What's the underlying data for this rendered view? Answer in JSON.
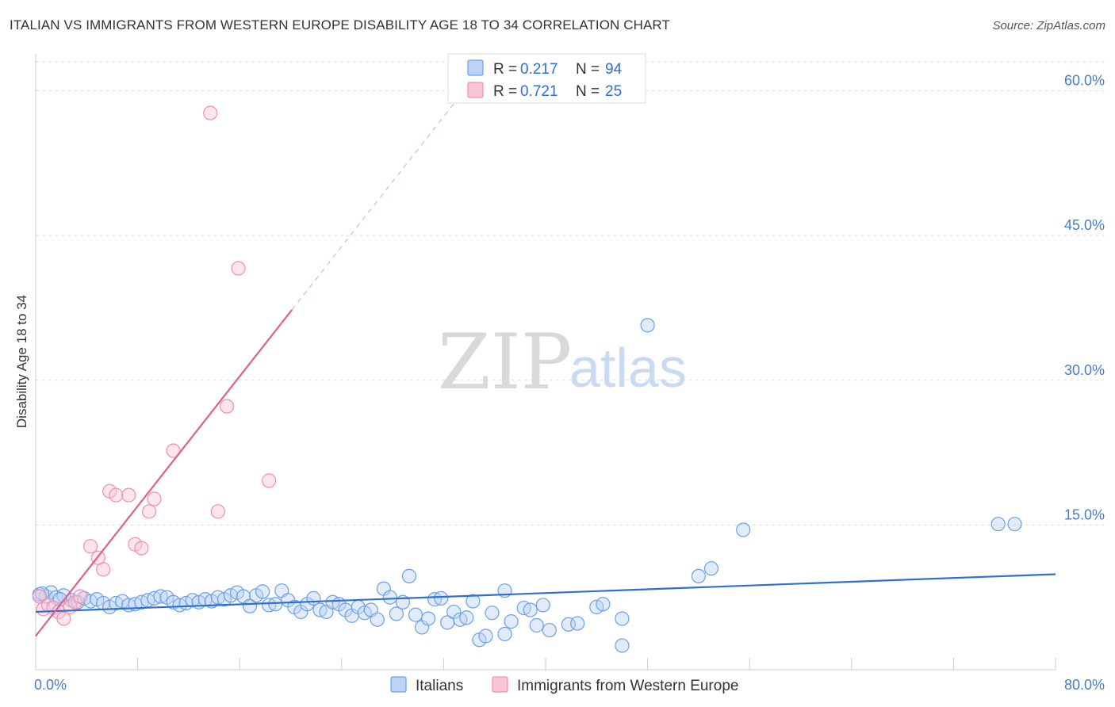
{
  "title": "ITALIAN VS IMMIGRANTS FROM WESTERN EUROPE DISABILITY AGE 18 TO 34 CORRELATION CHART",
  "source": "Source: ZipAtlas.com",
  "watermark": {
    "zip": "ZIP",
    "atlas": "atlas"
  },
  "chart_data": {
    "type": "scatter",
    "ylabel": "Disability Age 18 to 34",
    "xlim": [
      0,
      80
    ],
    "ylim": [
      0,
      63
    ],
    "x_tick_labels": [
      "0.0%",
      "80.0%"
    ],
    "y_ticks": [
      15,
      30,
      45,
      60
    ],
    "y_tick_labels": [
      "15.0%",
      "30.0%",
      "45.0%",
      "60.0%"
    ],
    "colors": {
      "italians": "#6ca0e8",
      "immigrants": "#f08fb0",
      "italians_line": "#2f6fd0",
      "immigrants_line": "#e0608a"
    },
    "legend": [
      {
        "name": "Italians",
        "r_label": "R =",
        "r": "0.217",
        "n_label": "N =",
        "n": "94"
      },
      {
        "name": "Immigrants from Western Europe",
        "r_label": "R =",
        "r": "0.721",
        "n_label": "N =",
        "n": "25"
      }
    ],
    "series": [
      {
        "name": "Italians",
        "trend": {
          "x0": 0,
          "y0": 6.0,
          "x1": 80,
          "y1": 9.9
        },
        "points": [
          [
            0.3,
            7.8
          ],
          [
            0.8,
            7.6
          ],
          [
            1.2,
            8.0
          ],
          [
            1.6,
            7.5
          ],
          [
            2.2,
            7.7
          ],
          [
            2.8,
            7.2
          ],
          [
            3.3,
            7.0
          ],
          [
            3.8,
            7.4
          ],
          [
            4.3,
            7.1
          ],
          [
            4.8,
            7.3
          ],
          [
            5.3,
            6.9
          ],
          [
            5.8,
            6.5
          ],
          [
            6.3,
            6.9
          ],
          [
            6.8,
            7.1
          ],
          [
            7.3,
            6.7
          ],
          [
            7.8,
            6.8
          ],
          [
            8.3,
            7.0
          ],
          [
            8.8,
            7.2
          ],
          [
            9.3,
            7.4
          ],
          [
            9.8,
            7.6
          ],
          [
            10.3,
            7.5
          ],
          [
            10.8,
            7.0
          ],
          [
            11.3,
            6.7
          ],
          [
            11.8,
            6.9
          ],
          [
            12.3,
            7.2
          ],
          [
            12.8,
            7.0
          ],
          [
            13.3,
            7.3
          ],
          [
            13.8,
            7.1
          ],
          [
            14.3,
            7.5
          ],
          [
            14.8,
            7.3
          ],
          [
            15.3,
            7.7
          ],
          [
            15.8,
            8.0
          ],
          [
            16.3,
            7.6
          ],
          [
            16.8,
            6.6
          ],
          [
            17.3,
            7.7
          ],
          [
            17.8,
            8.1
          ],
          [
            18.3,
            6.7
          ],
          [
            18.8,
            6.8
          ],
          [
            19.3,
            8.2
          ],
          [
            19.8,
            7.2
          ],
          [
            20.3,
            6.5
          ],
          [
            20.8,
            6.0
          ],
          [
            21.3,
            6.8
          ],
          [
            21.8,
            7.4
          ],
          [
            22.3,
            6.2
          ],
          [
            22.8,
            6.0
          ],
          [
            23.3,
            7.0
          ],
          [
            23.8,
            6.8
          ],
          [
            24.3,
            6.2
          ],
          [
            24.8,
            5.6
          ],
          [
            25.3,
            6.5
          ],
          [
            25.8,
            5.9
          ],
          [
            26.3,
            6.2
          ],
          [
            26.8,
            5.2
          ],
          [
            27.3,
            8.4
          ],
          [
            27.8,
            7.5
          ],
          [
            28.3,
            5.8
          ],
          [
            28.8,
            7.0
          ],
          [
            29.3,
            9.7
          ],
          [
            29.8,
            5.7
          ],
          [
            30.3,
            4.4
          ],
          [
            30.8,
            5.3
          ],
          [
            31.3,
            7.3
          ],
          [
            31.8,
            7.4
          ],
          [
            32.3,
            4.9
          ],
          [
            32.8,
            6.0
          ],
          [
            33.3,
            5.2
          ],
          [
            33.8,
            5.4
          ],
          [
            34.3,
            7.1
          ],
          [
            34.8,
            3.1
          ],
          [
            35.3,
            3.5
          ],
          [
            35.8,
            5.9
          ],
          [
            36.8,
            8.2
          ],
          [
            36.8,
            3.7
          ],
          [
            37.3,
            5.0
          ],
          [
            38.3,
            6.4
          ],
          [
            38.8,
            6.2
          ],
          [
            39.3,
            4.6
          ],
          [
            39.8,
            6.7
          ],
          [
            40.3,
            4.1
          ],
          [
            41.8,
            4.7
          ],
          [
            42.5,
            4.8
          ],
          [
            44.0,
            6.5
          ],
          [
            44.5,
            6.8
          ],
          [
            46.0,
            5.3
          ],
          [
            46.0,
            2.5
          ],
          [
            48.0,
            35.7
          ],
          [
            52.0,
            9.7
          ],
          [
            53.0,
            10.5
          ],
          [
            55.5,
            14.5
          ],
          [
            75.5,
            15.1
          ],
          [
            76.8,
            15.1
          ],
          [
            0.5,
            7.9
          ],
          [
            1.9,
            7.3
          ]
        ]
      },
      {
        "name": "Immigrants from Western Europe",
        "trend": {
          "x0": 0,
          "y0": 3.5,
          "x1": 20.1,
          "y1": 37.3,
          "dash_to_x": 33,
          "dash_to_y": 59.0
        },
        "points": [
          [
            0.3,
            7.6
          ],
          [
            0.6,
            6.3
          ],
          [
            1.0,
            6.7
          ],
          [
            1.4,
            6.4
          ],
          [
            1.8,
            6.0
          ],
          [
            2.2,
            5.3
          ],
          [
            2.7,
            6.5
          ],
          [
            3.1,
            7.0
          ],
          [
            3.5,
            7.6
          ],
          [
            4.3,
            12.8
          ],
          [
            4.9,
            11.6
          ],
          [
            5.3,
            10.4
          ],
          [
            5.8,
            18.5
          ],
          [
            6.3,
            18.1
          ],
          [
            7.3,
            18.1
          ],
          [
            7.8,
            13.0
          ],
          [
            8.3,
            12.6
          ],
          [
            8.9,
            16.4
          ],
          [
            9.3,
            17.7
          ],
          [
            10.8,
            22.7
          ],
          [
            13.7,
            57.7
          ],
          [
            14.3,
            16.4
          ],
          [
            15.0,
            27.3
          ],
          [
            15.9,
            41.6
          ],
          [
            18.3,
            19.6
          ]
        ]
      }
    ]
  }
}
